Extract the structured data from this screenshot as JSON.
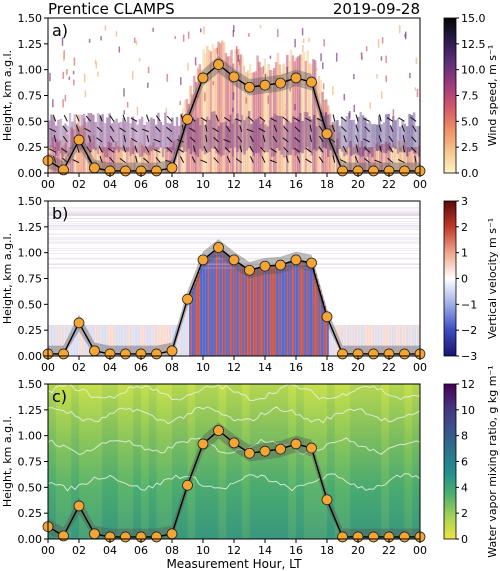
{
  "figure": {
    "title_left": "Prentice CLAMPS",
    "title_right": "2019-09-28"
  },
  "chart_data": [
    {
      "type": "heatmap",
      "panel_label": "a)",
      "xlabel": "",
      "ylabel": "Height, km a.g.l.",
      "x_ticks": [
        "00",
        "02",
        "04",
        "06",
        "08",
        "10",
        "12",
        "14",
        "16",
        "18",
        "20",
        "22",
        "00"
      ],
      "xlim": [
        0,
        24
      ],
      "y_ticks": [
        "0.00",
        "0.25",
        "0.50",
        "0.75",
        "1.00",
        "1.25",
        "1.50"
      ],
      "ylim": [
        0,
        1.5
      ],
      "colorbar": {
        "label": "Wind speed, m s⁻¹",
        "ticks": [
          "0.0",
          "2.5",
          "5.0",
          "7.5",
          "10.0",
          "12.5",
          "15.0"
        ],
        "range": [
          0,
          15
        ],
        "colors": [
          "#fdf3c4",
          "#f6c58e",
          "#ee8d64",
          "#d2566a",
          "#9c3a7b",
          "#5d2f7a",
          "#2a1b4a",
          "#050505"
        ]
      },
      "overlay": "wind barbs",
      "series": [
        {
          "x": [
            0,
            1,
            2,
            3,
            4,
            5,
            6,
            7,
            8,
            9,
            10,
            11,
            12,
            13,
            14,
            15,
            16,
            17,
            18,
            19,
            20,
            21,
            22,
            23,
            24
          ],
          "y": [
            0.12,
            0.03,
            0.32,
            0.05,
            0.02,
            0.02,
            0.02,
            0.02,
            0.05,
            0.52,
            0.92,
            1.05,
            0.93,
            0.83,
            0.85,
            0.87,
            0.92,
            0.88,
            0.38,
            0.02,
            0.02,
            0.02,
            0.02,
            0.02,
            0.02
          ]
        }
      ]
    },
    {
      "type": "heatmap",
      "panel_label": "b)",
      "xlabel": "",
      "ylabel": "Height, km a.g.l.",
      "x_ticks": [
        "00",
        "02",
        "04",
        "06",
        "08",
        "10",
        "12",
        "14",
        "16",
        "18",
        "20",
        "22",
        "00"
      ],
      "xlim": [
        0,
        24
      ],
      "y_ticks": [
        "0.00",
        "0.25",
        "0.50",
        "0.75",
        "1.00",
        "1.25",
        "1.50"
      ],
      "ylim": [
        0,
        1.5
      ],
      "colorbar": {
        "label": "Vertical velocity m s⁻¹",
        "ticks": [
          "−3",
          "−2",
          "−1",
          "0",
          "1",
          "2",
          "3"
        ],
        "range": [
          -3,
          3
        ],
        "colors": [
          "#1a1470",
          "#3b4cc0",
          "#9eaee8",
          "#ffffff",
          "#f1a58c",
          "#c0392b",
          "#5c0a0a"
        ]
      },
      "series": [
        {
          "x": [
            0,
            1,
            2,
            3,
            4,
            5,
            6,
            7,
            8,
            9,
            10,
            11,
            12,
            13,
            14,
            15,
            16,
            17,
            18,
            19,
            20,
            21,
            22,
            23,
            24
          ],
          "y": [
            0.02,
            0.02,
            0.32,
            0.05,
            0.02,
            0.02,
            0.02,
            0.02,
            0.05,
            0.55,
            0.93,
            1.05,
            0.93,
            0.83,
            0.87,
            0.88,
            0.93,
            0.9,
            0.38,
            0.02,
            0.02,
            0.02,
            0.02,
            0.02,
            0.02
          ]
        }
      ]
    },
    {
      "type": "heatmap",
      "panel_label": "c)",
      "xlabel": "Measurement Hour, LT",
      "ylabel": "Height, km a.g.l.",
      "x_ticks": [
        "00",
        "02",
        "04",
        "06",
        "08",
        "10",
        "12",
        "14",
        "16",
        "18",
        "20",
        "22",
        "00"
      ],
      "xlim": [
        0,
        24
      ],
      "y_ticks": [
        "0.00",
        "0.25",
        "0.50",
        "0.75",
        "1.00",
        "1.25",
        "1.50"
      ],
      "ylim": [
        0,
        1.5
      ],
      "colorbar": {
        "label": "Water vapor mixing ratio, g kg m⁻¹",
        "ticks": [
          "0",
          "2",
          "4",
          "6",
          "8",
          "10",
          "12"
        ],
        "range": [
          0,
          12
        ],
        "colors": [
          "#f0e442",
          "#a6d255",
          "#4fb06f",
          "#21908d",
          "#2c728e",
          "#3b528b",
          "#46327e",
          "#440154"
        ]
      },
      "overlay": "white contours",
      "series": [
        {
          "x": [
            0,
            1,
            2,
            3,
            4,
            5,
            6,
            7,
            8,
            9,
            10,
            11,
            12,
            13,
            14,
            15,
            16,
            17,
            18,
            19,
            20,
            21,
            22,
            23,
            24
          ],
          "y": [
            0.12,
            0.03,
            0.32,
            0.05,
            0.02,
            0.02,
            0.02,
            0.02,
            0.05,
            0.52,
            0.92,
            1.05,
            0.93,
            0.83,
            0.85,
            0.87,
            0.92,
            0.88,
            0.38,
            0.02,
            0.02,
            0.02,
            0.02,
            0.02,
            0.02
          ]
        }
      ]
    }
  ]
}
